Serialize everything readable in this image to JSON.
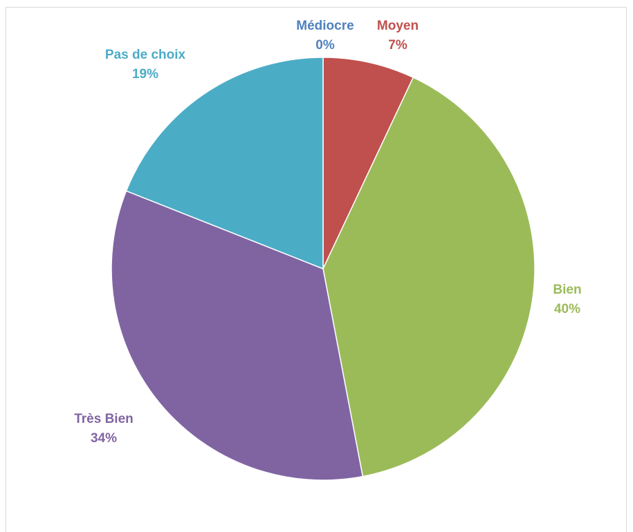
{
  "chart_data": {
    "type": "pie",
    "title": "",
    "slices": [
      {
        "label": "Médiocre",
        "value": 0,
        "pct_label": "0%",
        "color": "#4f81bd"
      },
      {
        "label": "Moyen",
        "value": 7,
        "pct_label": "7%",
        "color": "#c0504d"
      },
      {
        "label": "Bien",
        "value": 40,
        "pct_label": "40%",
        "color": "#9bbb59"
      },
      {
        "label": "Très Bien",
        "value": 34,
        "pct_label": "34%",
        "color": "#8064a2"
      },
      {
        "label": "Pas de choix",
        "value": 19,
        "pct_label": "19%",
        "color": "#4bacc6"
      }
    ],
    "label_colors": [
      "#4f81bd",
      "#c0504d",
      "#9bbb59",
      "#8064a2",
      "#4bacc6"
    ],
    "legend": "none"
  }
}
